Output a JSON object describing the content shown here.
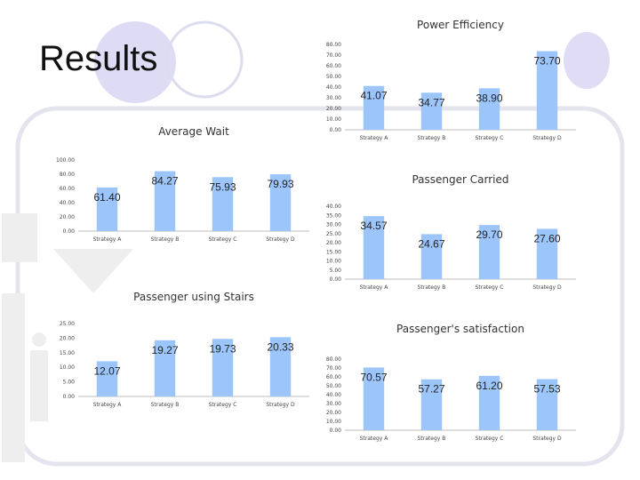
{
  "slide": {
    "title": "Results"
  },
  "chart_data": [
    {
      "type": "bar",
      "title": "Power Efficiency",
      "categories": [
        "Strategy A",
        "Strategy B",
        "Strategy C",
        "Strategy D"
      ],
      "values": [
        41.07,
        34.77,
        38.9,
        73.7
      ],
      "value_labels": [
        "41.07",
        "34.77",
        "38.90",
        "73.70"
      ],
      "ylim": [
        0,
        80
      ],
      "yticks": [
        "0.00",
        "10.00",
        "20.00",
        "30.00",
        "40.00",
        "50.00",
        "60.00",
        "70.00",
        "80.00"
      ],
      "bar_color": "#9cc6fb",
      "grid": false,
      "legend": "none"
    },
    {
      "type": "bar",
      "title": "Average Wait",
      "categories": [
        "Strategy A",
        "Strategy B",
        "Strategy C",
        "Strategy D"
      ],
      "values": [
        61.4,
        84.27,
        75.93,
        79.93
      ],
      "value_labels": [
        "61.40",
        "84.27",
        "75.93",
        "79.93"
      ],
      "ylim": [
        0,
        100
      ],
      "yticks": [
        "0.00",
        "20.00",
        "40.00",
        "60.00",
        "80.00",
        "100.00"
      ],
      "bar_color": "#9cc6fb",
      "grid": false,
      "legend": "none"
    },
    {
      "type": "bar",
      "title": "Passenger Carried",
      "categories": [
        "Strategy A",
        "Strategy B",
        "Strategy C",
        "Strategy D"
      ],
      "values": [
        34.57,
        24.67,
        29.7,
        27.6
      ],
      "value_labels": [
        "34.57",
        "24.67",
        "29.70",
        "27.60"
      ],
      "ylim": [
        0,
        40
      ],
      "yticks": [
        "0.00",
        "5.00",
        "10.00",
        "15.00",
        "20.00",
        "25.00",
        "30.00",
        "35.00",
        "40.00"
      ],
      "bar_color": "#9cc6fb",
      "grid": false,
      "legend": "none"
    },
    {
      "type": "bar",
      "title": "Passenger using Stairs",
      "categories": [
        "Strategy A",
        "Strategy B",
        "Strategy C",
        "Strategy D"
      ],
      "values": [
        12.07,
        19.27,
        19.73,
        20.33
      ],
      "value_labels": [
        "12.07",
        "19.27",
        "19.73",
        "20.33"
      ],
      "ylim": [
        0,
        25
      ],
      "yticks": [
        "0.00",
        "5.00",
        "10.00",
        "15.00",
        "20.00",
        "25.00"
      ],
      "bar_color": "#9cc6fb",
      "grid": false,
      "legend": "none"
    },
    {
      "type": "bar",
      "title": "Passenger's satisfaction",
      "categories": [
        "Strategy A",
        "Strategy B",
        "Strategy C",
        "Strategy D"
      ],
      "values": [
        70.57,
        57.27,
        61.2,
        57.53
      ],
      "value_labels": [
        "70.57",
        "57.27",
        "61.20",
        "57.53"
      ],
      "ylim": [
        0,
        80
      ],
      "yticks": [
        "0.00",
        "10.00",
        "20.00",
        "30.00",
        "40.00",
        "50.00",
        "60.00",
        "70.00",
        "80.00"
      ],
      "bar_color": "#9cc6fb",
      "grid": false,
      "legend": "none"
    }
  ]
}
